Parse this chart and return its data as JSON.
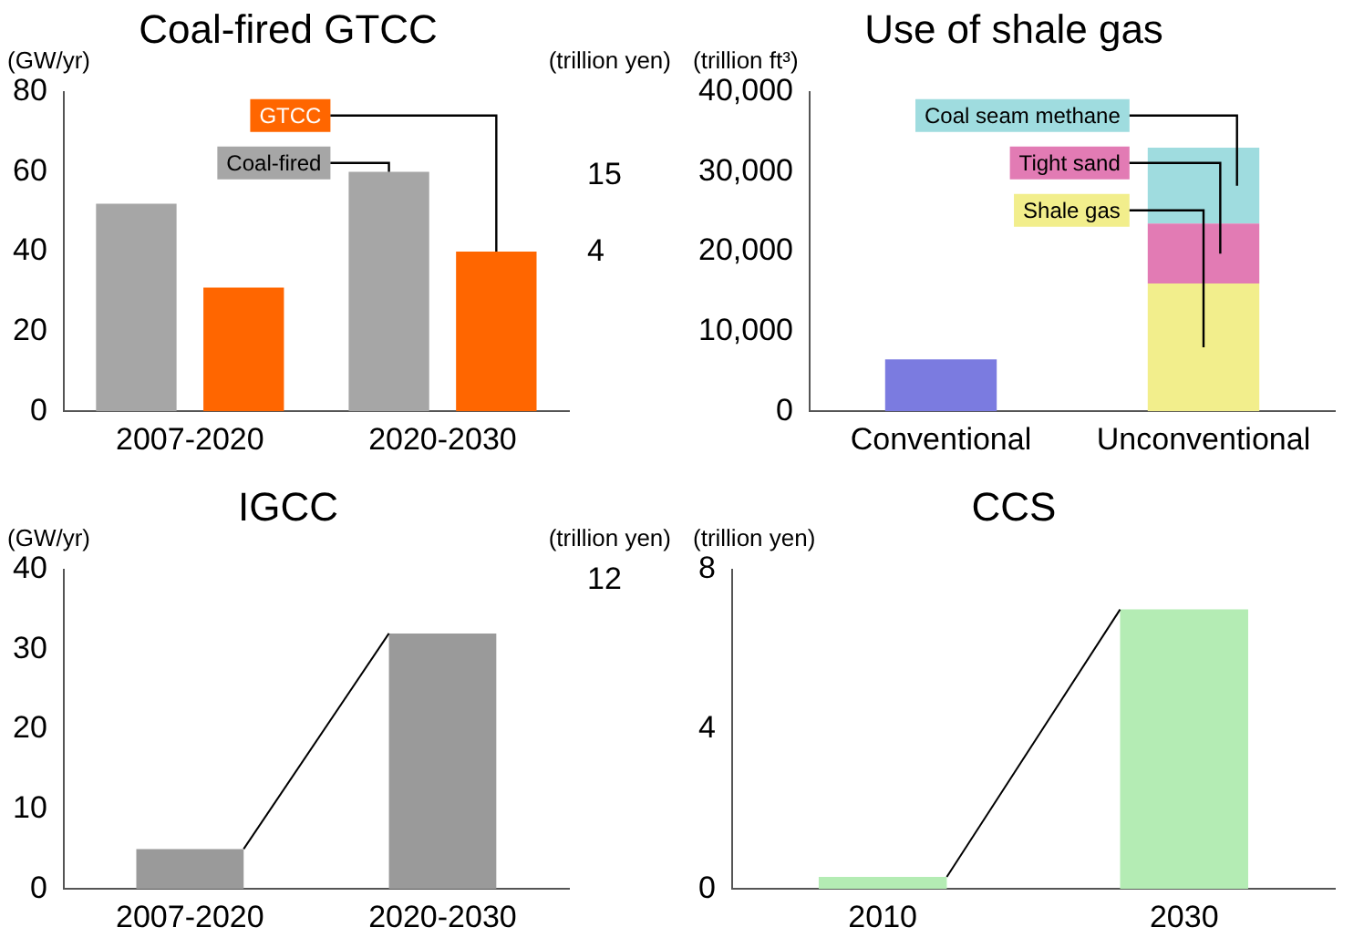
{
  "chart_data": [
    {
      "type": "bar",
      "title": "Coal-fired GTCC",
      "ylabel": "(GW/yr)",
      "y2label": "(trillion yen)",
      "categories": [
        "2007-2020",
        "2020-2030"
      ],
      "series": [
        {
          "name": "Coal-fired",
          "color": "#a6a6a6",
          "values": [
            52,
            60
          ]
        },
        {
          "name": "GTCC",
          "color": "#ff6600",
          "values": [
            31,
            40
          ]
        }
      ],
      "ylim": [
        0,
        80
      ],
      "yticks": [
        0,
        20,
        40,
        60,
        80
      ],
      "grid": false,
      "legend": false,
      "annotations": [
        "15",
        "4"
      ]
    },
    {
      "type": "bar",
      "title": "Use of shale gas",
      "ylabel": "(trillion ft³)",
      "categories": [
        "Conventional",
        "Unconventional"
      ],
      "stacked": true,
      "series": [
        {
          "color": "#7b7be0",
          "values": [
            6500,
            null
          ]
        },
        {
          "name": "Shale gas",
          "color": "#f2ee8c",
          "values": [
            null,
            16000
          ]
        },
        {
          "name": "Tight sand",
          "color": "#e27bb4",
          "values": [
            null,
            7500
          ]
        },
        {
          "name": "Coal seam methane",
          "color": "#9fdcdf",
          "values": [
            null,
            9500
          ]
        }
      ],
      "ylim": [
        0,
        40000
      ],
      "yticks": [
        {
          "value": 0,
          "label": "0"
        },
        {
          "value": 10000,
          "label": "10,000"
        },
        {
          "value": 20000,
          "label": "20,000"
        },
        {
          "value": 30000,
          "label": "30,000"
        },
        {
          "value": 40000,
          "label": "40,000"
        }
      ],
      "grid": false,
      "legend": false
    },
    {
      "type": "bar",
      "title": "IGCC",
      "ylabel": "(GW/yr)",
      "y2label": "(trillion yen)",
      "categories": [
        "2007-2020",
        "2020-2030"
      ],
      "values": [
        5,
        32
      ],
      "color": "#9a9a9a",
      "ylim": [
        0,
        40
      ],
      "yticks": [
        0,
        10,
        20,
        30,
        40
      ],
      "grid": false,
      "legend": false,
      "annotations": [
        "12"
      ]
    },
    {
      "type": "bar",
      "title": "CCS",
      "ylabel": "(trillion yen)",
      "categories": [
        "2010",
        "2030"
      ],
      "values": [
        0.3,
        7
      ],
      "color": "#b4ecb4",
      "ylim": [
        0,
        8
      ],
      "yticks": [
        0,
        4,
        8
      ],
      "grid": false,
      "legend": false
    }
  ]
}
